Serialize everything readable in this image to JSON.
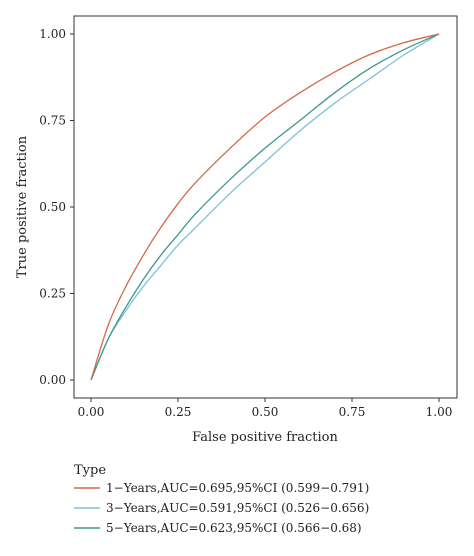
{
  "chart_data": {
    "type": "line",
    "title": "",
    "xlabel": "False positive fraction",
    "ylabel": "True positive fraction",
    "xlim": [
      0,
      1
    ],
    "ylim": [
      0,
      1
    ],
    "x_ticks": [
      "0.00",
      "0.25",
      "0.50",
      "0.75",
      "1.00"
    ],
    "y_ticks": [
      "0.00",
      "0.25",
      "0.50",
      "0.75",
      "1.00"
    ],
    "grid": false,
    "legend": {
      "title": "Type",
      "placement": "bottom"
    },
    "series": [
      {
        "name": "1−Years,AUC=0.695,95%CI (0.599−0.791)",
        "color": "#d4694a",
        "x": [
          0,
          0.05,
          0.1,
          0.15,
          0.2,
          0.25,
          0.3,
          0.4,
          0.5,
          0.6,
          0.7,
          0.8,
          0.9,
          1.0
        ],
        "y": [
          0,
          0.16,
          0.27,
          0.36,
          0.44,
          0.51,
          0.57,
          0.67,
          0.76,
          0.83,
          0.89,
          0.94,
          0.975,
          1.0
        ]
      },
      {
        "name": "3−Years,AUC=0.591,95%CI (0.526−0.656)",
        "color": "#7fc0d8",
        "x": [
          0,
          0.05,
          0.1,
          0.15,
          0.2,
          0.25,
          0.3,
          0.4,
          0.5,
          0.6,
          0.7,
          0.8,
          0.9,
          1.0
        ],
        "y": [
          0,
          0.12,
          0.2,
          0.27,
          0.33,
          0.39,
          0.44,
          0.54,
          0.63,
          0.72,
          0.8,
          0.87,
          0.94,
          1.0
        ]
      },
      {
        "name": "5−Years,AUC=0.623,95%CI (0.566−0.68)",
        "color": "#3a9a8c",
        "x": [
          0,
          0.05,
          0.1,
          0.15,
          0.2,
          0.25,
          0.3,
          0.4,
          0.5,
          0.6,
          0.7,
          0.8,
          0.9,
          1.0
        ],
        "y": [
          0,
          0.12,
          0.21,
          0.29,
          0.36,
          0.42,
          0.48,
          0.58,
          0.67,
          0.75,
          0.83,
          0.9,
          0.955,
          1.0
        ]
      }
    ]
  }
}
